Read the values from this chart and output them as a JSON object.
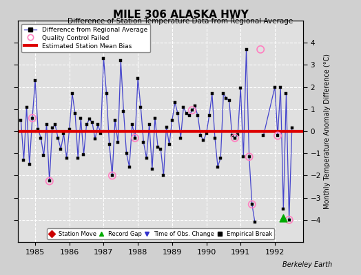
{
  "title": "MILE 306 ALASKA HWY",
  "subtitle": "Difference of Station Temperature Data from Regional Average",
  "ylabel": "Monthly Temperature Anomaly Difference (°C)",
  "xlim": [
    1984.5,
    1992.83
  ],
  "ylim": [
    -5,
    5
  ],
  "yticks": [
    -4,
    -3,
    -2,
    -1,
    0,
    1,
    2,
    3,
    4
  ],
  "xticks": [
    1985,
    1986,
    1987,
    1988,
    1989,
    1990,
    1991,
    1992
  ],
  "bias_line": 0.0,
  "background_color": "#d0d0d0",
  "plot_bg_color": "#e0e0e0",
  "grid_color": "#ffffff",
  "bias_color": "#dd0000",
  "line_color": "#4444cc",
  "marker_color": "#000000",
  "watermark": "Berkeley Earth",
  "series_x": [
    1984.583,
    1984.667,
    1984.75,
    1984.833,
    1984.917,
    1985.0,
    1985.083,
    1985.167,
    1985.25,
    1985.333,
    1985.417,
    1985.5,
    1985.583,
    1985.667,
    1985.75,
    1985.833,
    1985.917,
    1986.0,
    1986.083,
    1986.167,
    1986.25,
    1986.333,
    1986.417,
    1986.5,
    1986.583,
    1986.667,
    1986.75,
    1986.833,
    1986.917,
    1987.0,
    1987.083,
    1987.167,
    1987.25,
    1987.333,
    1987.417,
    1987.5,
    1987.583,
    1987.667,
    1987.75,
    1987.833,
    1987.917,
    1988.0,
    1988.083,
    1988.167,
    1988.25,
    1988.333,
    1988.417,
    1988.5,
    1988.583,
    1988.667,
    1988.75,
    1988.833,
    1988.917,
    1989.0,
    1989.083,
    1989.167,
    1989.25,
    1989.333,
    1989.417,
    1989.5,
    1989.583,
    1989.667,
    1989.75,
    1989.833,
    1989.917,
    1990.0,
    1990.083,
    1990.167,
    1990.25,
    1990.333,
    1990.417,
    1990.5,
    1990.583,
    1990.667,
    1990.75,
    1990.833,
    1990.917,
    1991.0,
    1991.083,
    1991.167,
    1991.25,
    1991.333,
    1991.417,
    1991.667,
    1992.0,
    1992.083,
    1992.167,
    1992.25,
    1992.333,
    1992.417,
    1992.5
  ],
  "series_y": [
    0.5,
    -1.3,
    1.1,
    -1.5,
    0.6,
    2.3,
    0.1,
    -0.3,
    -1.1,
    0.3,
    -2.25,
    0.15,
    0.3,
    -0.3,
    -0.8,
    -0.1,
    -1.2,
    0.1,
    1.7,
    0.8,
    -1.2,
    0.6,
    -1.05,
    0.3,
    0.55,
    0.4,
    -0.35,
    0.3,
    -0.1,
    3.3,
    1.7,
    -0.6,
    -2.0,
    0.5,
    -0.5,
    3.2,
    0.9,
    -1.0,
    -1.6,
    0.3,
    -0.3,
    2.4,
    1.1,
    -0.5,
    -1.2,
    0.3,
    -1.7,
    0.6,
    -0.7,
    -0.8,
    -2.0,
    0.2,
    -0.6,
    0.5,
    1.3,
    0.8,
    -0.3,
    1.1,
    0.8,
    0.7,
    0.95,
    1.15,
    0.7,
    -0.2,
    -0.4,
    -0.1,
    0.7,
    1.7,
    -0.3,
    -1.6,
    -1.2,
    1.7,
    1.5,
    1.4,
    -0.2,
    -0.3,
    -0.15,
    1.95,
    -1.15,
    3.7,
    -1.15,
    -3.3,
    -4.1,
    -0.2,
    2.0,
    -0.2,
    2.0,
    -3.5,
    1.7,
    -4.0,
    0.15
  ],
  "gap_x_before": 1991.417,
  "qc_failed_x": [
    1984.917,
    1985.417,
    1987.25,
    1987.917,
    1989.583,
    1990.833,
    1991.25,
    1991.333,
    1991.583,
    1992.083,
    1992.417
  ],
  "qc_failed_y": [
    0.6,
    -2.25,
    -2.0,
    -0.3,
    0.95,
    -0.3,
    -1.15,
    -3.3,
    3.7,
    -0.2,
    -4.0
  ],
  "record_gap_x": [
    1992.25
  ],
  "record_gap_y": [
    -3.9
  ],
  "legend_items": [
    "Difference from Regional Average",
    "Quality Control Failed",
    "Estimated Station Mean Bias"
  ],
  "bottom_legend": [
    "Station Move",
    "Record Gap",
    "Time of Obs. Change",
    "Empirical Break"
  ]
}
